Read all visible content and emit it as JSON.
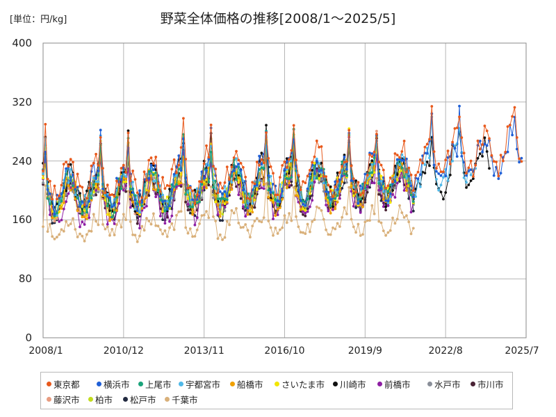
{
  "header": {
    "unit": "[単位：円/kg]",
    "title": "野菜全体価格の推移[2008/1〜2025/5]"
  },
  "colors": {
    "tokyo": "#e8591c",
    "yokohama": "#1f5fd6",
    "ageo": "#1aa37a",
    "utsunomiya": "#4fb8e8",
    "funabashi": "#f0a000",
    "saitama": "#f2e600",
    "kawasaki": "#111111",
    "maebashi": "#8e1ea3",
    "mito": "#8a8f99",
    "ichikawa": "#4a2335",
    "fujisawa": "#e89c80",
    "kashiwa": "#c2dc1e",
    "matsudo": "#222a40",
    "chiba": "#d9b07a"
  },
  "chart_data": {
    "type": "line",
    "title": "野菜全体価格の推移[2008/1〜2025/5]",
    "ylabel": "[単位：円/kg]",
    "xlabel": "",
    "ylim": [
      0,
      400
    ],
    "yticks": [
      0,
      80,
      160,
      240,
      320,
      400
    ],
    "xlim": [
      "2008/1",
      "2025/7"
    ],
    "xticks": [
      "2008/1",
      "2010/12",
      "2013/11",
      "2016/10",
      "2019/9",
      "2022/8",
      "2025/7"
    ],
    "grid": true,
    "legend_position": "bottom",
    "series": [
      {
        "name": "東京都",
        "color_key": "tokyo",
        "start": "2008/1",
        "end": "2025/5",
        "base": 213,
        "amp": 24,
        "jitter": 17,
        "seed": 3,
        "trend": 1.0
      },
      {
        "name": "横浜市",
        "color_key": "yokohama",
        "start": "2008/1",
        "end": "2025/5",
        "base": 203,
        "amp": 23,
        "jitter": 16,
        "seed": 7,
        "trend": 1.0
      },
      {
        "name": "上尾市",
        "color_key": "ageo",
        "start": "2008/1",
        "end": "2021/6",
        "base": 195,
        "amp": 22,
        "jitter": 15,
        "seed": 11,
        "trend": 1.0
      },
      {
        "name": "宇都宮市",
        "color_key": "utsunomiya",
        "start": "2008/1",
        "end": "2023/9",
        "base": 199,
        "amp": 22,
        "jitter": 14,
        "seed": 13,
        "trend": 1.0
      },
      {
        "name": "船橋市",
        "color_key": "funabashi",
        "start": "2008/1",
        "end": "2021/6",
        "base": 188,
        "amp": 21,
        "jitter": 15,
        "seed": 17,
        "trend": 1.0
      },
      {
        "name": "さいたま市",
        "color_key": "saitama",
        "start": "2008/1",
        "end": "2021/6",
        "base": 193,
        "amp": 22,
        "jitter": 14,
        "seed": 19,
        "trend": 1.0
      },
      {
        "name": "川崎市",
        "color_key": "kawasaki",
        "start": "2008/1",
        "end": "2024/3",
        "base": 198,
        "amp": 24,
        "jitter": 18,
        "seed": 23,
        "trend": 1.0
      },
      {
        "name": "前橋市",
        "color_key": "maebashi",
        "start": "2008/1",
        "end": "2021/6",
        "base": 180,
        "amp": 22,
        "jitter": 16,
        "seed": 29,
        "trend": 1.0
      },
      {
        "name": "水戸市",
        "color_key": "mito",
        "start": "2008/1",
        "end": "2021/6",
        "base": 188,
        "amp": 20,
        "jitter": 13,
        "seed": 31,
        "trend": 1.0
      },
      {
        "name": "市川市",
        "color_key": "ichikawa",
        "start": "2008/1",
        "end": "2021/6",
        "base": 184,
        "amp": 21,
        "jitter": 14,
        "seed": 37,
        "trend": 1.0
      },
      {
        "name": "藤沢市",
        "color_key": "fujisawa",
        "start": "2008/1",
        "end": "2021/6",
        "base": 190,
        "amp": 21,
        "jitter": 14,
        "seed": 41,
        "trend": 1.0
      },
      {
        "name": "柏市",
        "color_key": "kashiwa",
        "start": "2008/1",
        "end": "2021/6",
        "base": 192,
        "amp": 21,
        "jitter": 14,
        "seed": 43,
        "trend": 1.0
      },
      {
        "name": "松戸市",
        "color_key": "matsudo",
        "start": "2008/1",
        "end": "2021/6",
        "base": 186,
        "amp": 23,
        "jitter": 16,
        "seed": 47,
        "trend": 1.0
      },
      {
        "name": "千葉市",
        "color_key": "chiba",
        "start": "2008/1",
        "end": "2021/6",
        "base": 148,
        "amp": 13,
        "jitter": 10,
        "seed": 53,
        "trend": 0.55
      }
    ]
  }
}
